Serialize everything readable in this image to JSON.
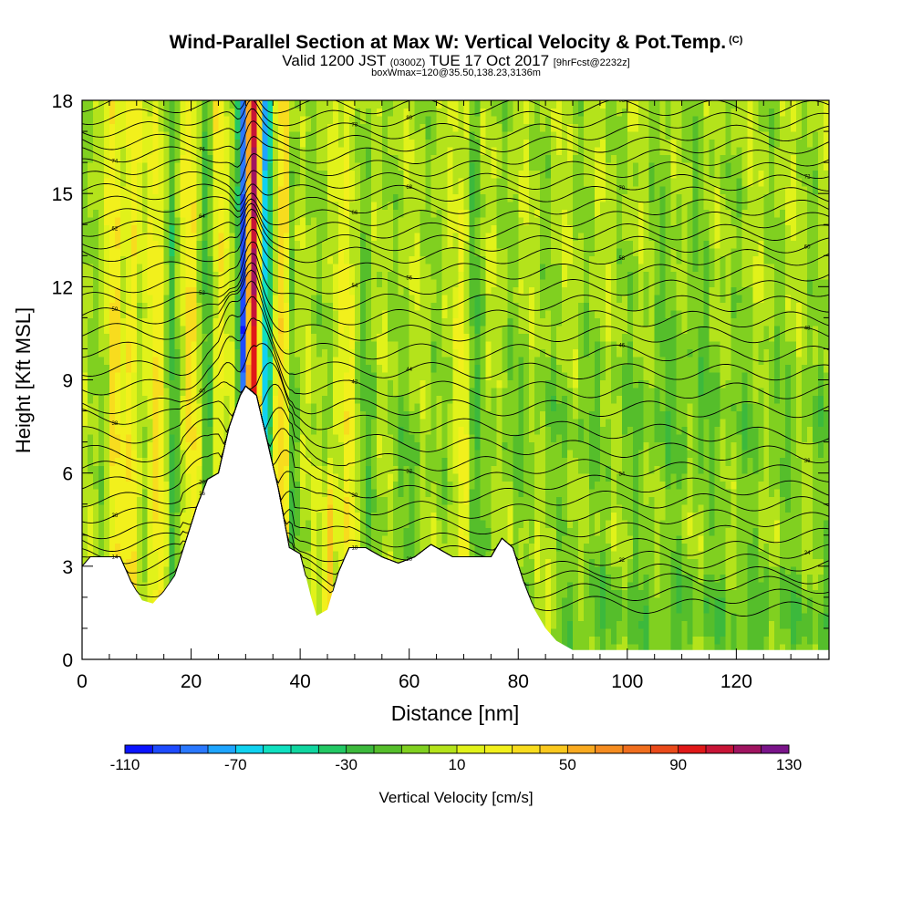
{
  "title": {
    "main": "Wind-Parallel Section at Max W: Vertical Velocity & Pot.Temp.",
    "copyright": "(C)",
    "valid_prefix": "Valid 1200 JST",
    "valid_utc": "(0300Z)",
    "valid_date": "TUE 17 Oct 2017",
    "forecast": "[9hrFcst@2232z]",
    "box_info": "boxWmax=120@35.50,138.23,3136m"
  },
  "chart_data": {
    "type": "heatmap",
    "xlabel": "Distance [nm]",
    "ylabel": "Height [Kft MSL]",
    "xlim": [
      0,
      137
    ],
    "ylim": [
      0,
      18
    ],
    "x_ticks": [
      "0",
      "20",
      "40",
      "60",
      "80",
      "100",
      "120"
    ],
    "x_tick_values": [
      0,
      20,
      40,
      60,
      80,
      100,
      120
    ],
    "y_ticks": [
      "0",
      "3",
      "6",
      "9",
      "12",
      "15",
      "18"
    ],
    "y_tick_values": [
      0,
      3,
      6,
      9,
      12,
      15,
      18
    ],
    "colorbar": {
      "label": "Vertical Velocity [cm/s]",
      "tick_labels": [
        "-110",
        "-70",
        "-30",
        "10",
        "50",
        "90",
        "130"
      ],
      "tick_values": [
        -110,
        -70,
        -30,
        10,
        50,
        90,
        130
      ],
      "levels": [
        -110,
        -100,
        -90,
        -80,
        -70,
        -60,
        -50,
        -40,
        -30,
        -20,
        -10,
        0,
        10,
        20,
        30,
        40,
        50,
        60,
        70,
        80,
        90,
        100,
        110,
        120,
        130
      ],
      "colors": [
        "#0a14ff",
        "#1e4bff",
        "#2a78ff",
        "#1ea5ff",
        "#10d2f0",
        "#10e0c0",
        "#10d6a0",
        "#22c864",
        "#3cb93c",
        "#55be2b",
        "#80d020",
        "#b4e31b",
        "#e1f21a",
        "#f2f01c",
        "#f8dc1e",
        "#fac81e",
        "#f9aa20",
        "#f58c20",
        "#f06e1e",
        "#ea4a1a",
        "#e01818",
        "#c81436",
        "#a01460",
        "#7a148a"
      ]
    },
    "terrain": [
      {
        "x": 0,
        "h": 3.0
      },
      {
        "x": 1.5,
        "h": 3.3
      },
      {
        "x": 7,
        "h": 3.3
      },
      {
        "x": 9,
        "h": 2.5
      },
      {
        "x": 11,
        "h": 1.9
      },
      {
        "x": 13,
        "h": 1.8
      },
      {
        "x": 15,
        "h": 2.2
      },
      {
        "x": 17,
        "h": 2.7
      },
      {
        "x": 19,
        "h": 3.8
      },
      {
        "x": 21,
        "h": 4.9
      },
      {
        "x": 23,
        "h": 5.8
      },
      {
        "x": 25,
        "h": 6.0
      },
      {
        "x": 27,
        "h": 7.5
      },
      {
        "x": 29,
        "h": 8.5
      },
      {
        "x": 30,
        "h": 8.8
      },
      {
        "x": 32,
        "h": 8.5
      },
      {
        "x": 34,
        "h": 7.0
      },
      {
        "x": 36,
        "h": 5.5
      },
      {
        "x": 38,
        "h": 3.6
      },
      {
        "x": 40,
        "h": 3.4
      },
      {
        "x": 42,
        "h": 2.0
      },
      {
        "x": 43,
        "h": 1.4
      },
      {
        "x": 45,
        "h": 1.6
      },
      {
        "x": 47,
        "h": 2.8
      },
      {
        "x": 49,
        "h": 3.6
      },
      {
        "x": 52,
        "h": 3.6
      },
      {
        "x": 55,
        "h": 3.3
      },
      {
        "x": 58,
        "h": 3.1
      },
      {
        "x": 61,
        "h": 3.3
      },
      {
        "x": 64,
        "h": 3.7
      },
      {
        "x": 68,
        "h": 3.3
      },
      {
        "x": 75,
        "h": 3.3
      },
      {
        "x": 77,
        "h": 3.9
      },
      {
        "x": 79,
        "h": 3.6
      },
      {
        "x": 81,
        "h": 2.5
      },
      {
        "x": 83,
        "h": 1.6
      },
      {
        "x": 85,
        "h": 1.0
      },
      {
        "x": 87,
        "h": 0.6
      },
      {
        "x": 90,
        "h": 0.3
      },
      {
        "x": 137,
        "h": 0.3
      }
    ],
    "isentropes": [
      {
        "label": "14",
        "h": 1.9
      },
      {
        "label": "16",
        "h": 2.3
      },
      {
        "label": "18",
        "h": 2.7
      },
      {
        "label": "20",
        "h": 3.0
      },
      {
        "label": "22",
        "h": 3.4
      },
      {
        "label": "24",
        "h": 3.8
      },
      {
        "label": "26",
        "h": 4.3
      },
      {
        "label": "28",
        "h": 4.8
      },
      {
        "label": "30",
        "h": 5.3
      },
      {
        "label": "32",
        "h": 5.8
      },
      {
        "label": "34",
        "h": 6.3
      },
      {
        "label": "36",
        "h": 6.9
      },
      {
        "label": "38",
        "h": 7.5
      },
      {
        "label": "40",
        "h": 8.1
      },
      {
        "label": "42",
        "h": 8.7
      },
      {
        "label": "44",
        "h": 9.3
      },
      {
        "label": "46",
        "h": 9.9
      },
      {
        "label": "48",
        "h": 10.5
      },
      {
        "label": "50",
        "h": 11.0
      },
      {
        "label": "52",
        "h": 11.5
      },
      {
        "label": "54",
        "h": 12.0
      },
      {
        "label": "56",
        "h": 12.5
      },
      {
        "label": "58",
        "h": 13.0
      },
      {
        "label": "60",
        "h": 13.4
      },
      {
        "label": "62",
        "h": 13.8
      },
      {
        "label": "64",
        "h": 14.2
      },
      {
        "label": "66",
        "h": 14.6
      },
      {
        "label": "68",
        "h": 15.0
      },
      {
        "label": "70",
        "h": 15.4
      },
      {
        "label": "72",
        "h": 15.8
      },
      {
        "label": "74",
        "h": 16.2
      },
      {
        "label": "76",
        "h": 16.6
      },
      {
        "label": "78",
        "h": 17.0
      },
      {
        "label": "80",
        "h": 17.4
      },
      {
        "label": "82",
        "h": 17.8
      }
    ]
  }
}
